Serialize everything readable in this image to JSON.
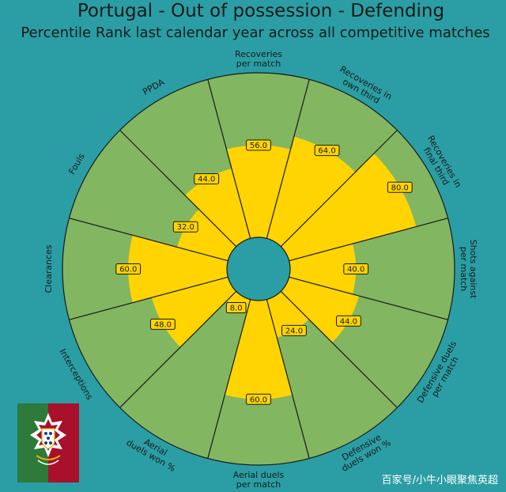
{
  "title": "Portugal - Out of possession - Defending",
  "subtitle": "Percentile Rank last calendar year across all competitive matches",
  "watermark": "百家号/小牛小眼聚焦英超",
  "colors": {
    "background": "#2a9ea4",
    "outer_fill": "#82b661",
    "value_fill": "#ffd400",
    "divider": "#1a1a1a",
    "crest_green": "#2d7a3a",
    "crest_red": "#a8102b"
  },
  "chart_data": {
    "type": "polar-bar",
    "range": [
      0,
      100
    ],
    "categories": [
      "Recoveries\nper match",
      "Recoveries in\nown third",
      "Recoveries in\nfinal third",
      "Shots against\nper match",
      "Defensive duels\nper match",
      "Defensive\nduels won %",
      "Aerial duels\nper match",
      "Aerial\nduels won %",
      "Interceptions",
      "Clearances",
      "Fouls",
      "PPDA"
    ],
    "values": [
      56,
      64,
      80,
      40,
      44,
      24,
      60,
      8,
      48,
      60,
      32,
      44
    ],
    "value_labels": [
      "56.0",
      "64.0",
      "80.0",
      "40.0",
      "44.0",
      "24.0",
      "60.0",
      "8.0",
      "48.0",
      "60.0",
      "32.0",
      "44.0"
    ]
  }
}
